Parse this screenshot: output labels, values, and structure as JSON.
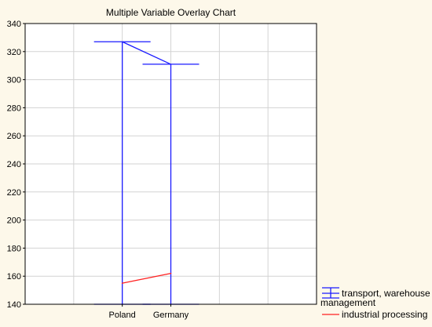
{
  "chart_data": {
    "type": "line",
    "title": "Multiple Variable Overlay Chart",
    "xlabel": "",
    "ylabel": "",
    "categories": [
      "Poland",
      "Germany"
    ],
    "ylim": [
      140,
      340
    ],
    "yticks": [
      140,
      160,
      180,
      200,
      220,
      240,
      260,
      280,
      300,
      320,
      340
    ],
    "grid": true,
    "legend_position": "bottom-right",
    "series": [
      {
        "name": "transport, warehouse management",
        "name_lines": [
          "transport, warehouse",
          "management"
        ],
        "style": "high-low-bar",
        "color": "#1a1aff",
        "values": [
          327,
          311
        ],
        "low": [
          140,
          140
        ]
      },
      {
        "name": "industrial processing",
        "style": "line",
        "color": "#ff2020",
        "values": [
          155,
          162
        ]
      }
    ]
  }
}
